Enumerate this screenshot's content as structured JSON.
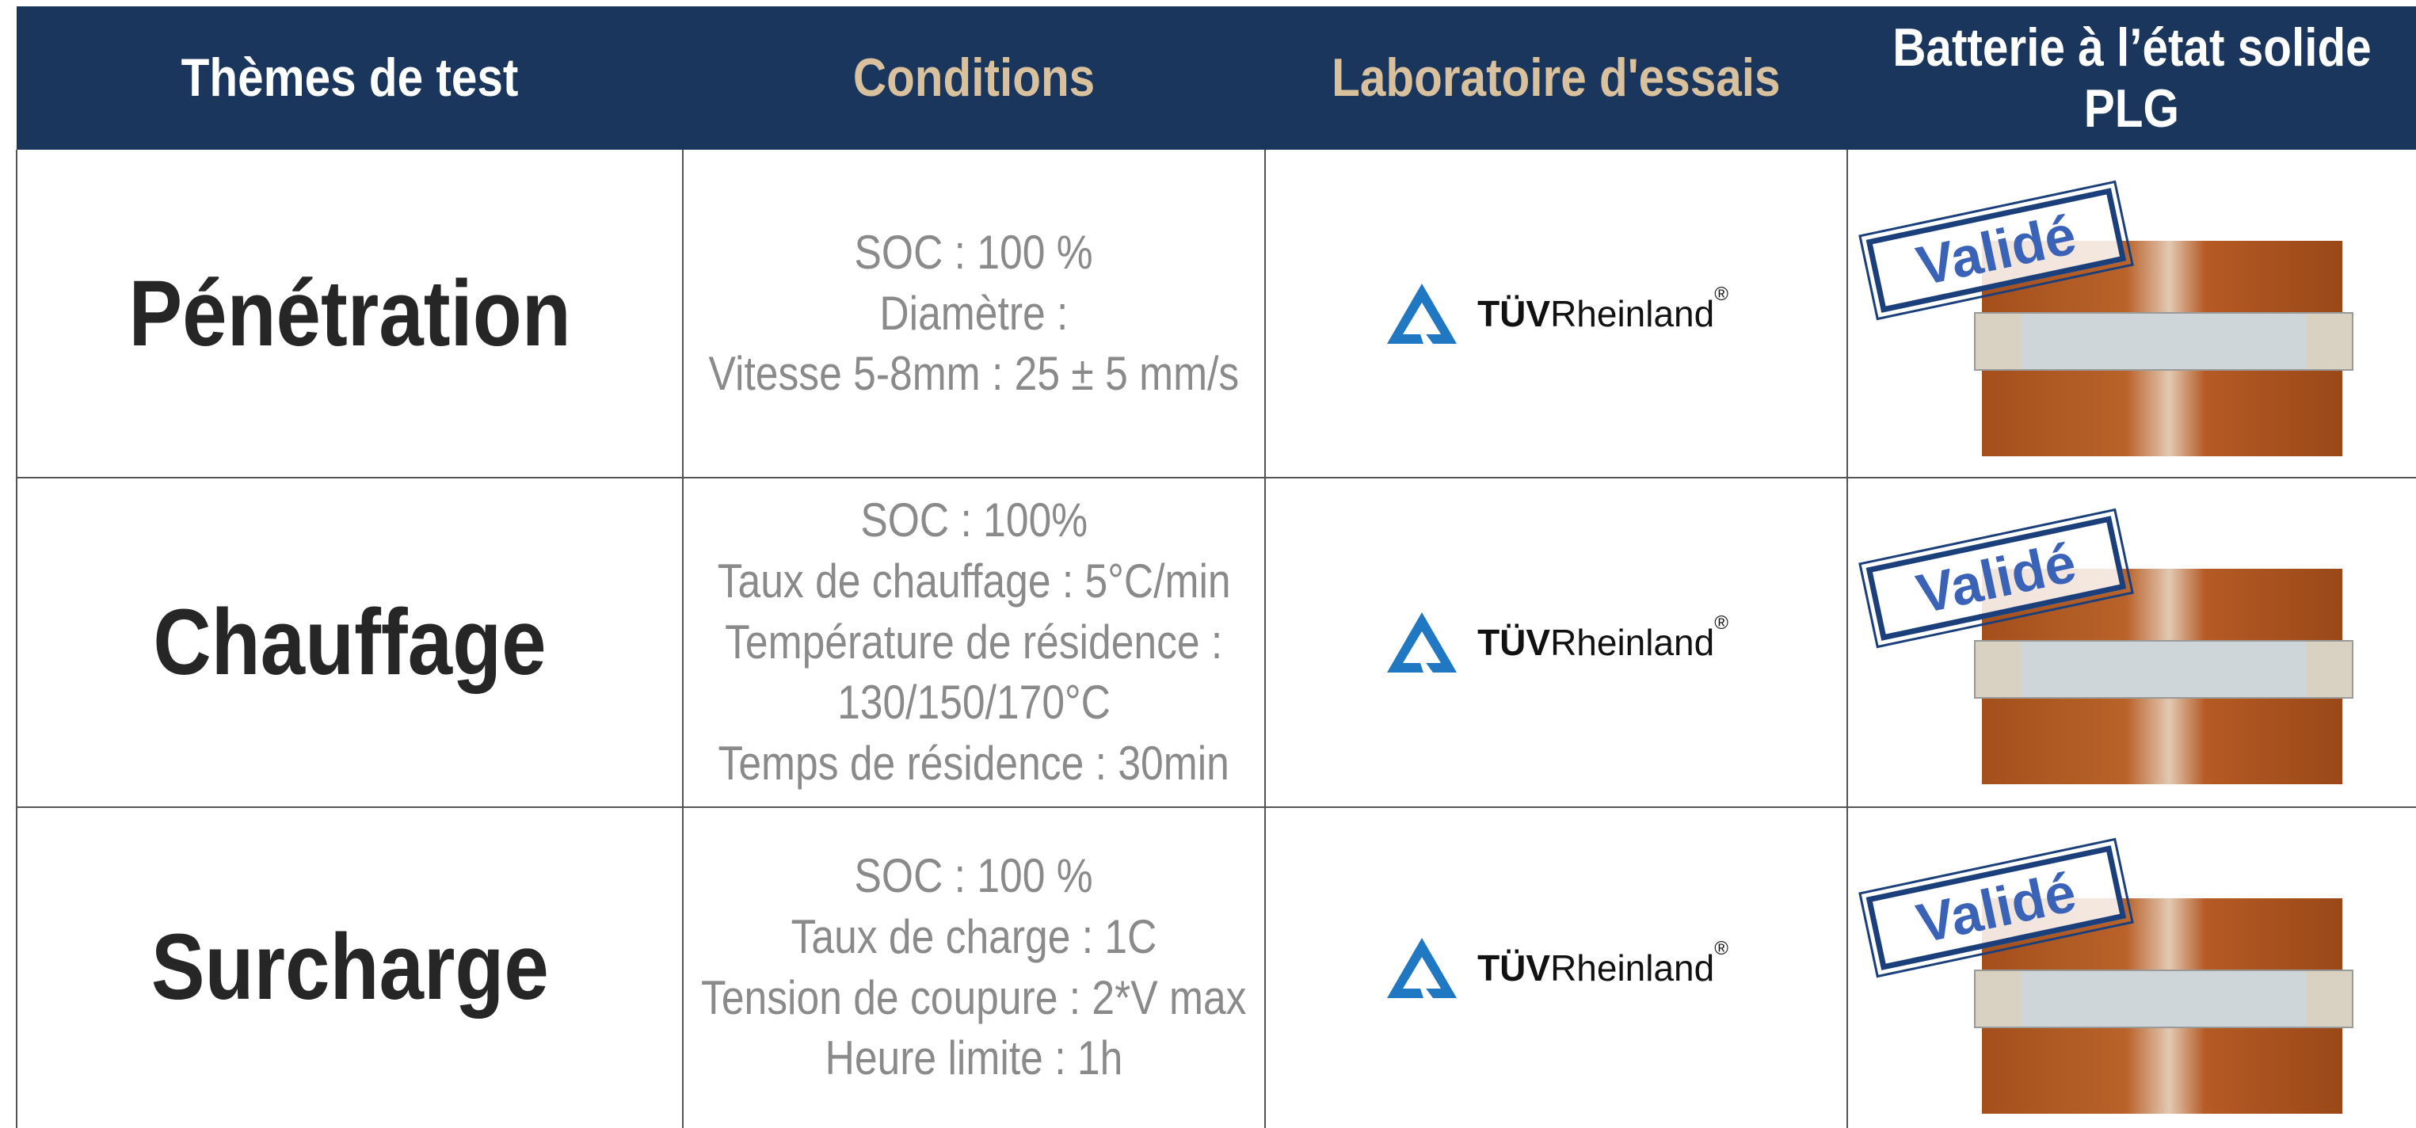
{
  "header": [
    [
      "Thèmes de test"
    ],
    [
      "Conditions"
    ],
    [
      "Laboratoire d'essais"
    ],
    [
      "Batterie à l’état solide",
      "PLG"
    ]
  ],
  "rows": [
    {
      "theme": "Pénétration",
      "conditions": [
        "SOC : 100 %",
        "Diamètre :",
        "Vitesse 5-8mm : 25 ± 5 mm/s"
      ],
      "lab": {
        "brand": "TÜV",
        "name": "Rheinland",
        "mark": "®"
      },
      "status": "Validé"
    },
    {
      "theme": "Chauffage",
      "conditions": [
        "SOC : 100%",
        "Taux de chauffage : 5°C/min",
        "Température de résidence :",
        "130/150/170°C",
        "Temps de résidence : 30min"
      ],
      "lab": {
        "brand": "TÜV",
        "name": "Rheinland",
        "mark": "®"
      },
      "status": "Validé"
    },
    {
      "theme": "Surcharge",
      "conditions": [
        "SOC : 100 %",
        "Taux de charge : 1C",
        "Tension de coupure : 2*V max",
        "Heure limite : 1h"
      ],
      "lab": {
        "brand": "TÜV",
        "name": "Rheinland",
        "mark": "®"
      },
      "status": "Validé"
    }
  ]
}
